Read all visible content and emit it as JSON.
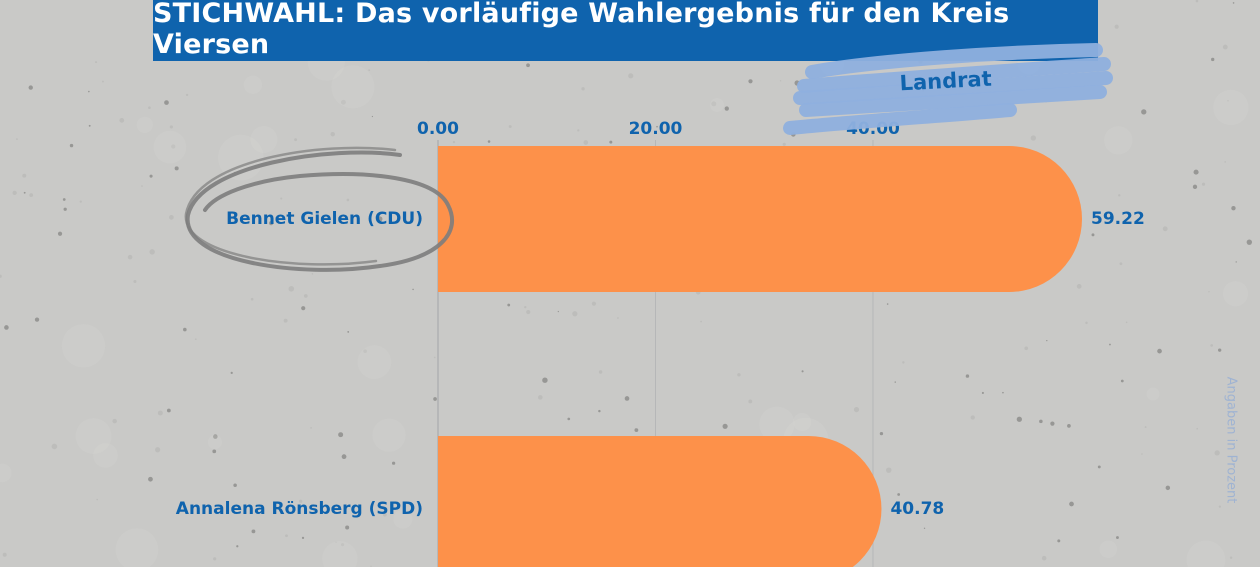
{
  "title": "STICHWAHL: Das vorläufige Wahlergebnis für den Kreis Viersen",
  "badge": "Landrat",
  "note": "Angaben in Prozent",
  "colors": {
    "banner": "#0f63ad",
    "bar": "#fd914a",
    "text": "#0f63ad",
    "badge": "#8fb0de",
    "circle": "#7d7d7d"
  },
  "chart_data": {
    "type": "bar",
    "orientation": "horizontal",
    "categories": [
      "Bennet Gielen (CDU)",
      "Annalena Rönsberg (SPD)"
    ],
    "values": [
      59.22,
      40.78
    ],
    "value_labels": [
      "59.22",
      "40.78"
    ],
    "xticks": [
      {
        "value": 0,
        "label": "0.00"
      },
      {
        "value": 20,
        "label": "20.00"
      },
      {
        "value": 40,
        "label": "40.00"
      }
    ],
    "xlim": [
      0,
      59.22
    ],
    "highlighted_category": "Bennet Gielen (CDU)",
    "grid": true,
    "title": "STICHWAHL: Das vorläufige Wahlergebnis für den Kreis Viersen"
  }
}
